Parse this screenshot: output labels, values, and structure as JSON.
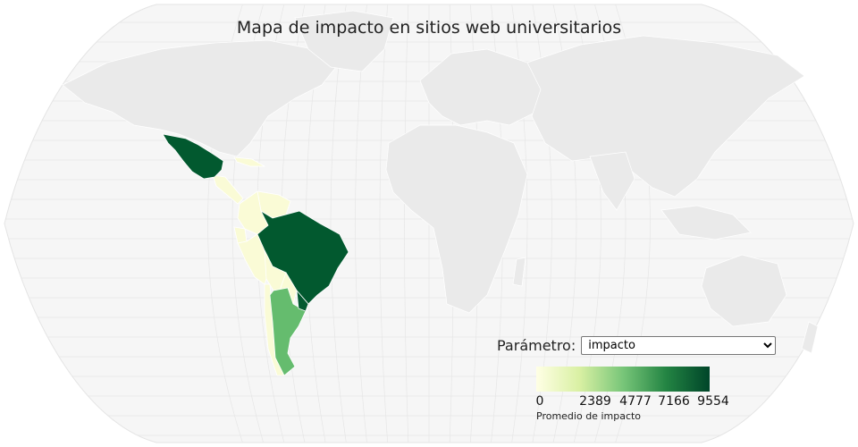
{
  "title": "Mapa de impacto en sitios web universitarios",
  "control": {
    "label": "Parámetro:",
    "selected": "impacto",
    "options": [
      "impacto"
    ]
  },
  "colorbar": {
    "title": "Promedio de impacto",
    "ticks": [
      "0",
      "2389",
      "4777",
      "7166",
      "9554"
    ],
    "min": 0,
    "max": 9554,
    "colors": [
      "#ffffe5",
      "#d9f0a3",
      "#78c679",
      "#238443",
      "#004529"
    ]
  },
  "map": {
    "projection": "robinson",
    "ocean_color": "#f6f6f6",
    "land_color": "#eaeaea",
    "graticule": true
  },
  "regions": [
    {
      "name": "Mexico",
      "color": "#02592f"
    },
    {
      "name": "Brazil",
      "color": "#02592f"
    },
    {
      "name": "Argentina",
      "color": "#65bc6e"
    },
    {
      "name": "Uruguay",
      "color": "#02592f"
    },
    {
      "name": "Venezuela",
      "color": "#fafbd6"
    },
    {
      "name": "Colombia",
      "color": "#fafbd6"
    },
    {
      "name": "Peru",
      "color": "#fafbd6"
    },
    {
      "name": "Bolivia",
      "color": "#fafbd6"
    },
    {
      "name": "Chile",
      "color": "#fafbd6"
    },
    {
      "name": "Paraguay",
      "color": "#fafbd6"
    },
    {
      "name": "Ecuador",
      "color": "#fafbd6"
    },
    {
      "name": "Central America",
      "color": "#fafbd6"
    },
    {
      "name": "Cuba",
      "color": "#fafbd6"
    }
  ]
}
